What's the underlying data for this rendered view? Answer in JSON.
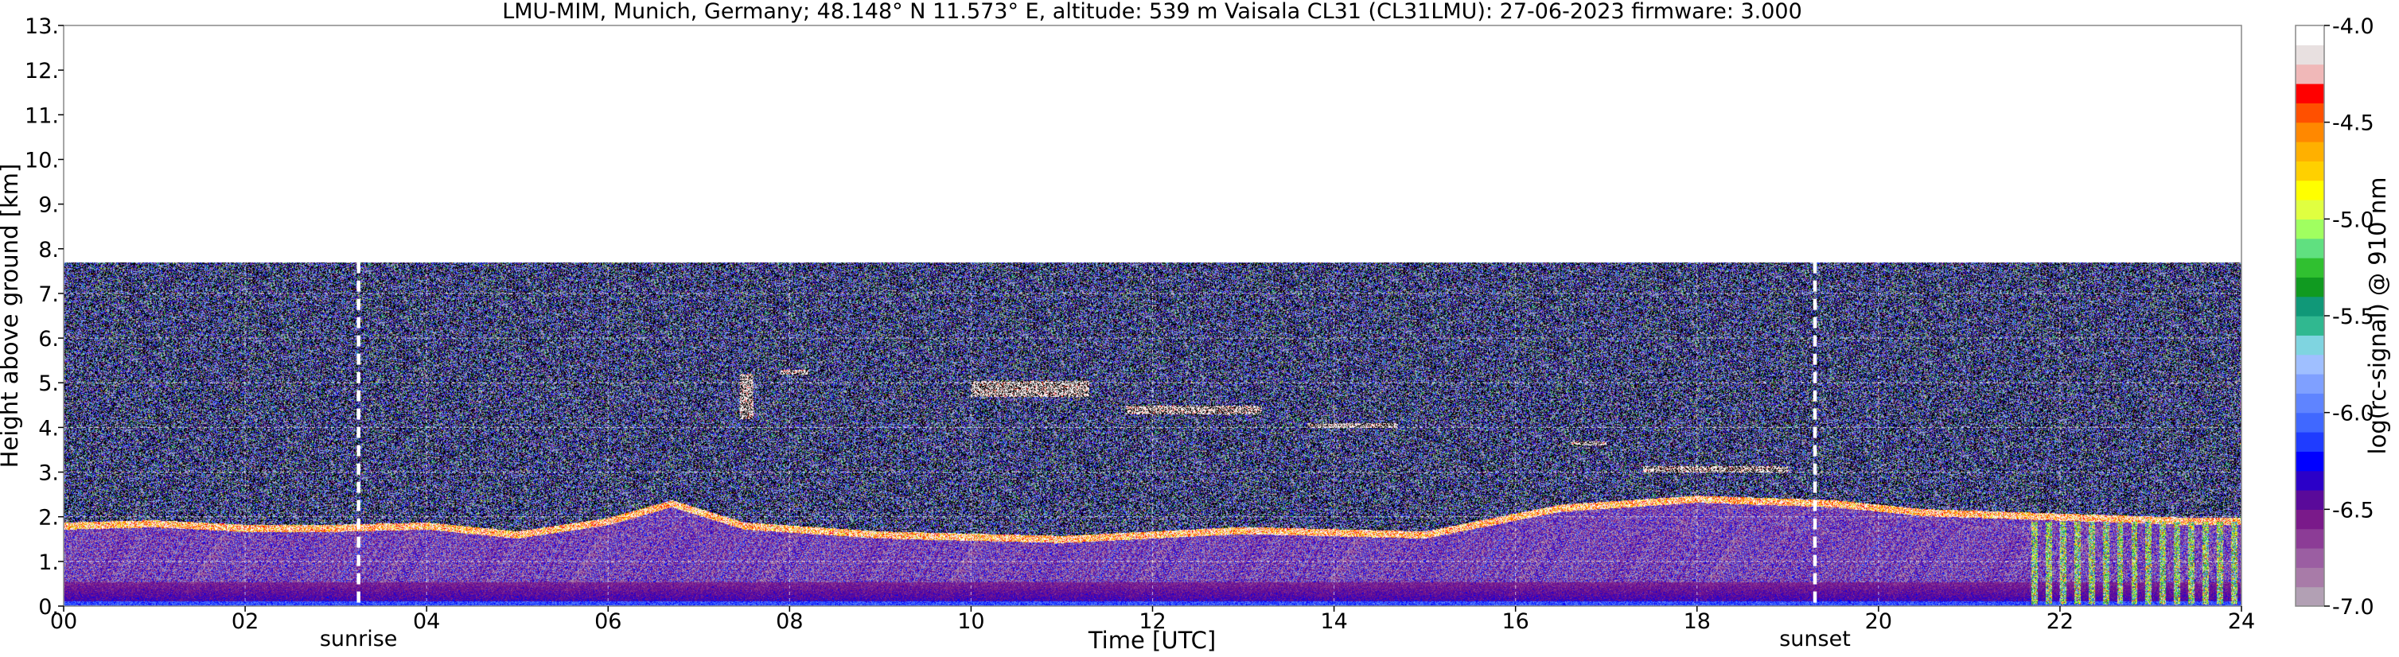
{
  "chart_data": {
    "type": "heatmap",
    "title": "LMU-MIM, Munich, Germany; 48.148° N 11.573° E, altitude: 539 m    Vaisala CL31 (CL31LMU): 27-06-2023    firmware: 3.000",
    "xlabel": "Time [UTC]",
    "ylabel": "Height above ground [km]",
    "xlim": [
      0,
      24
    ],
    "ylim": [
      0,
      13
    ],
    "x_ticks": [
      0,
      2,
      4,
      6,
      8,
      10,
      12,
      14,
      16,
      18,
      20,
      22,
      24
    ],
    "x_tick_labels": [
      "00",
      "02",
      "04",
      "06",
      "08",
      "10",
      "12",
      "14",
      "16",
      "18",
      "20",
      "22",
      "24"
    ],
    "y_ticks": [
      0,
      1,
      2,
      3,
      4,
      5,
      6,
      7,
      8,
      9,
      10,
      11,
      12,
      13
    ],
    "y_tick_labels": [
      "0.",
      "1.",
      "2.",
      "3.",
      "4.",
      "5.",
      "6.",
      "7.",
      "8.",
      "9.",
      "10.",
      "11.",
      "12.",
      "13."
    ],
    "grid": true,
    "data_top_km": 7.7,
    "events": [
      {
        "label": "sunrise",
        "x": 3.25
      },
      {
        "label": "sunset",
        "x": 19.3
      }
    ],
    "layer_base_km": [
      {
        "x": 0.0,
        "y": 1.8
      },
      {
        "x": 1.0,
        "y": 1.85
      },
      {
        "x": 2.0,
        "y": 1.75
      },
      {
        "x": 3.0,
        "y": 1.75
      },
      {
        "x": 4.0,
        "y": 1.8
      },
      {
        "x": 5.0,
        "y": 1.6
      },
      {
        "x": 6.0,
        "y": 1.9
      },
      {
        "x": 6.7,
        "y": 2.3
      },
      {
        "x": 7.5,
        "y": 1.8
      },
      {
        "x": 9.0,
        "y": 1.6
      },
      {
        "x": 11.0,
        "y": 1.5
      },
      {
        "x": 13.0,
        "y": 1.7
      },
      {
        "x": 15.0,
        "y": 1.6
      },
      {
        "x": 16.5,
        "y": 2.2
      },
      {
        "x": 18.0,
        "y": 2.4
      },
      {
        "x": 19.5,
        "y": 2.3
      },
      {
        "x": 20.5,
        "y": 2.1
      },
      {
        "x": 22.0,
        "y": 2.0
      },
      {
        "x": 23.5,
        "y": 1.9
      },
      {
        "x": 24.0,
        "y": 1.9
      }
    ],
    "elevated_layers_km": [
      {
        "x0": 7.45,
        "x1": 7.6,
        "y0": 4.2,
        "y1": 5.2
      },
      {
        "x0": 7.9,
        "x1": 8.2,
        "y0": 5.2,
        "y1": 5.3
      },
      {
        "x0": 10.0,
        "x1": 11.3,
        "y0": 4.7,
        "y1": 5.05
      },
      {
        "x0": 11.7,
        "x1": 13.2,
        "y0": 4.3,
        "y1": 4.5
      },
      {
        "x0": 13.7,
        "x1": 14.7,
        "y0": 4.0,
        "y1": 4.1
      },
      {
        "x0": 16.6,
        "x1": 17.0,
        "y0": 3.6,
        "y1": 3.7
      },
      {
        "x0": 17.4,
        "x1": 19.0,
        "y0": 3.0,
        "y1": 3.15
      }
    ],
    "colorbar": {
      "label": "log(rc-signal) @ 910 nm",
      "min": -7.0,
      "max": -4.0,
      "ticks": [
        -7.0,
        -6.5,
        -6.0,
        -5.5,
        -5.0,
        -4.5,
        -4.0
      ],
      "tick_labels": [
        "-7.0",
        "-6.5",
        "-6.0",
        "-5.5",
        "-5.0",
        "-4.5",
        "-4.0"
      ],
      "colors": [
        "#b2a0b4",
        "#a87ba8",
        "#9b5ea2",
        "#8c3c96",
        "#7a1a8a",
        "#5a0a9a",
        "#2b00c8",
        "#0000ff",
        "#1f3cff",
        "#4068ff",
        "#5f84ff",
        "#7fa0ff",
        "#9fbfff",
        "#7fd4e0",
        "#30b890",
        "#109878",
        "#109a20",
        "#30c030",
        "#60e080",
        "#a0ff60",
        "#e0ff40",
        "#ffff00",
        "#ffd000",
        "#ffb000",
        "#ff8800",
        "#ff5000",
        "#ff0000",
        "#f0b8b8",
        "#e8e0e0",
        "#ffffff"
      ]
    }
  }
}
